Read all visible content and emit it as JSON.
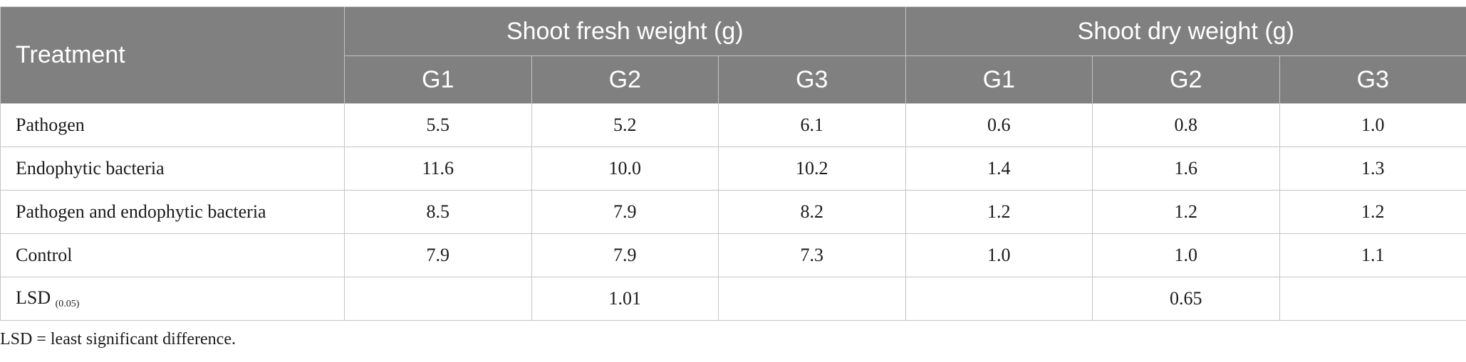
{
  "table": {
    "treatment_header": "Treatment",
    "groups": [
      "Shoot fresh weight (g)",
      "Shoot dry weight (g)"
    ],
    "subheaders": [
      "G1",
      "G2",
      "G3",
      "G1",
      "G2",
      "G3"
    ],
    "rows": [
      {
        "treatment": "Pathogen",
        "values": [
          "5.5",
          "5.2",
          "6.1",
          "0.6",
          "0.8",
          "1.0"
        ]
      },
      {
        "treatment": "Endophytic bacteria",
        "values": [
          "11.6",
          "10.0",
          "10.2",
          "1.4",
          "1.6",
          "1.3"
        ]
      },
      {
        "treatment": "Pathogen and endophytic bacteria",
        "values": [
          "8.5",
          "7.9",
          "8.2",
          "1.2",
          "1.2",
          "1.2"
        ]
      },
      {
        "treatment": "Control",
        "values": [
          "7.9",
          "7.9",
          "7.3",
          "1.0",
          "1.0",
          "1.1"
        ]
      }
    ],
    "lsd": {
      "label": "LSD",
      "subscript": "(0.05)",
      "values": [
        "",
        "1.01",
        "",
        "",
        "0.65",
        ""
      ]
    }
  },
  "footnote": "LSD = least significant difference."
}
